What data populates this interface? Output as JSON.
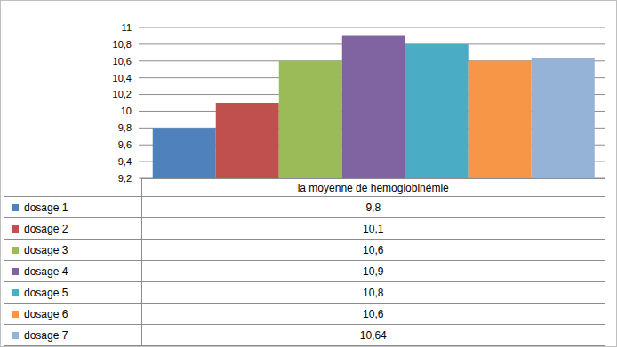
{
  "chart_data": {
    "type": "bar",
    "categories": [
      "la moyenne de hemoglobinémie"
    ],
    "series": [
      {
        "name": "dosage 1",
        "color": "#4F81BD",
        "values": [
          9.8
        ],
        "value_labels": [
          "9,8"
        ]
      },
      {
        "name": "dosage 2",
        "color": "#C0504D",
        "values": [
          10.1
        ],
        "value_labels": [
          "10,1"
        ]
      },
      {
        "name": "dosage 3",
        "color": "#9BBB59",
        "values": [
          10.6
        ],
        "value_labels": [
          "10,6"
        ]
      },
      {
        "name": "dosage 4",
        "color": "#8064A2",
        "values": [
          10.9
        ],
        "value_labels": [
          "10,9"
        ]
      },
      {
        "name": "dosage 5",
        "color": "#4BACC6",
        "values": [
          10.8
        ],
        "value_labels": [
          "10,8"
        ]
      },
      {
        "name": "dosage 6",
        "color": "#F79646",
        "values": [
          10.6
        ],
        "value_labels": [
          "10,6"
        ]
      },
      {
        "name": "dosage 7",
        "color": "#95B3D7",
        "values": [
          10.64
        ],
        "value_labels": [
          "10,64"
        ]
      }
    ],
    "ylim": [
      9.2,
      11
    ],
    "yticks": [
      {
        "value": 9.2,
        "label": "9,2"
      },
      {
        "value": 9.4,
        "label": "9,4"
      },
      {
        "value": 9.6,
        "label": "9,6"
      },
      {
        "value": 9.8,
        "label": "9,8"
      },
      10,
      {
        "value": 10.2,
        "label": "10,2"
      },
      {
        "value": 10.4,
        "label": "10,4"
      },
      {
        "value": 10.6,
        "label": "10,6"
      },
      {
        "value": 10.8,
        "label": "10,8"
      },
      11
    ],
    "grid": true
  }
}
